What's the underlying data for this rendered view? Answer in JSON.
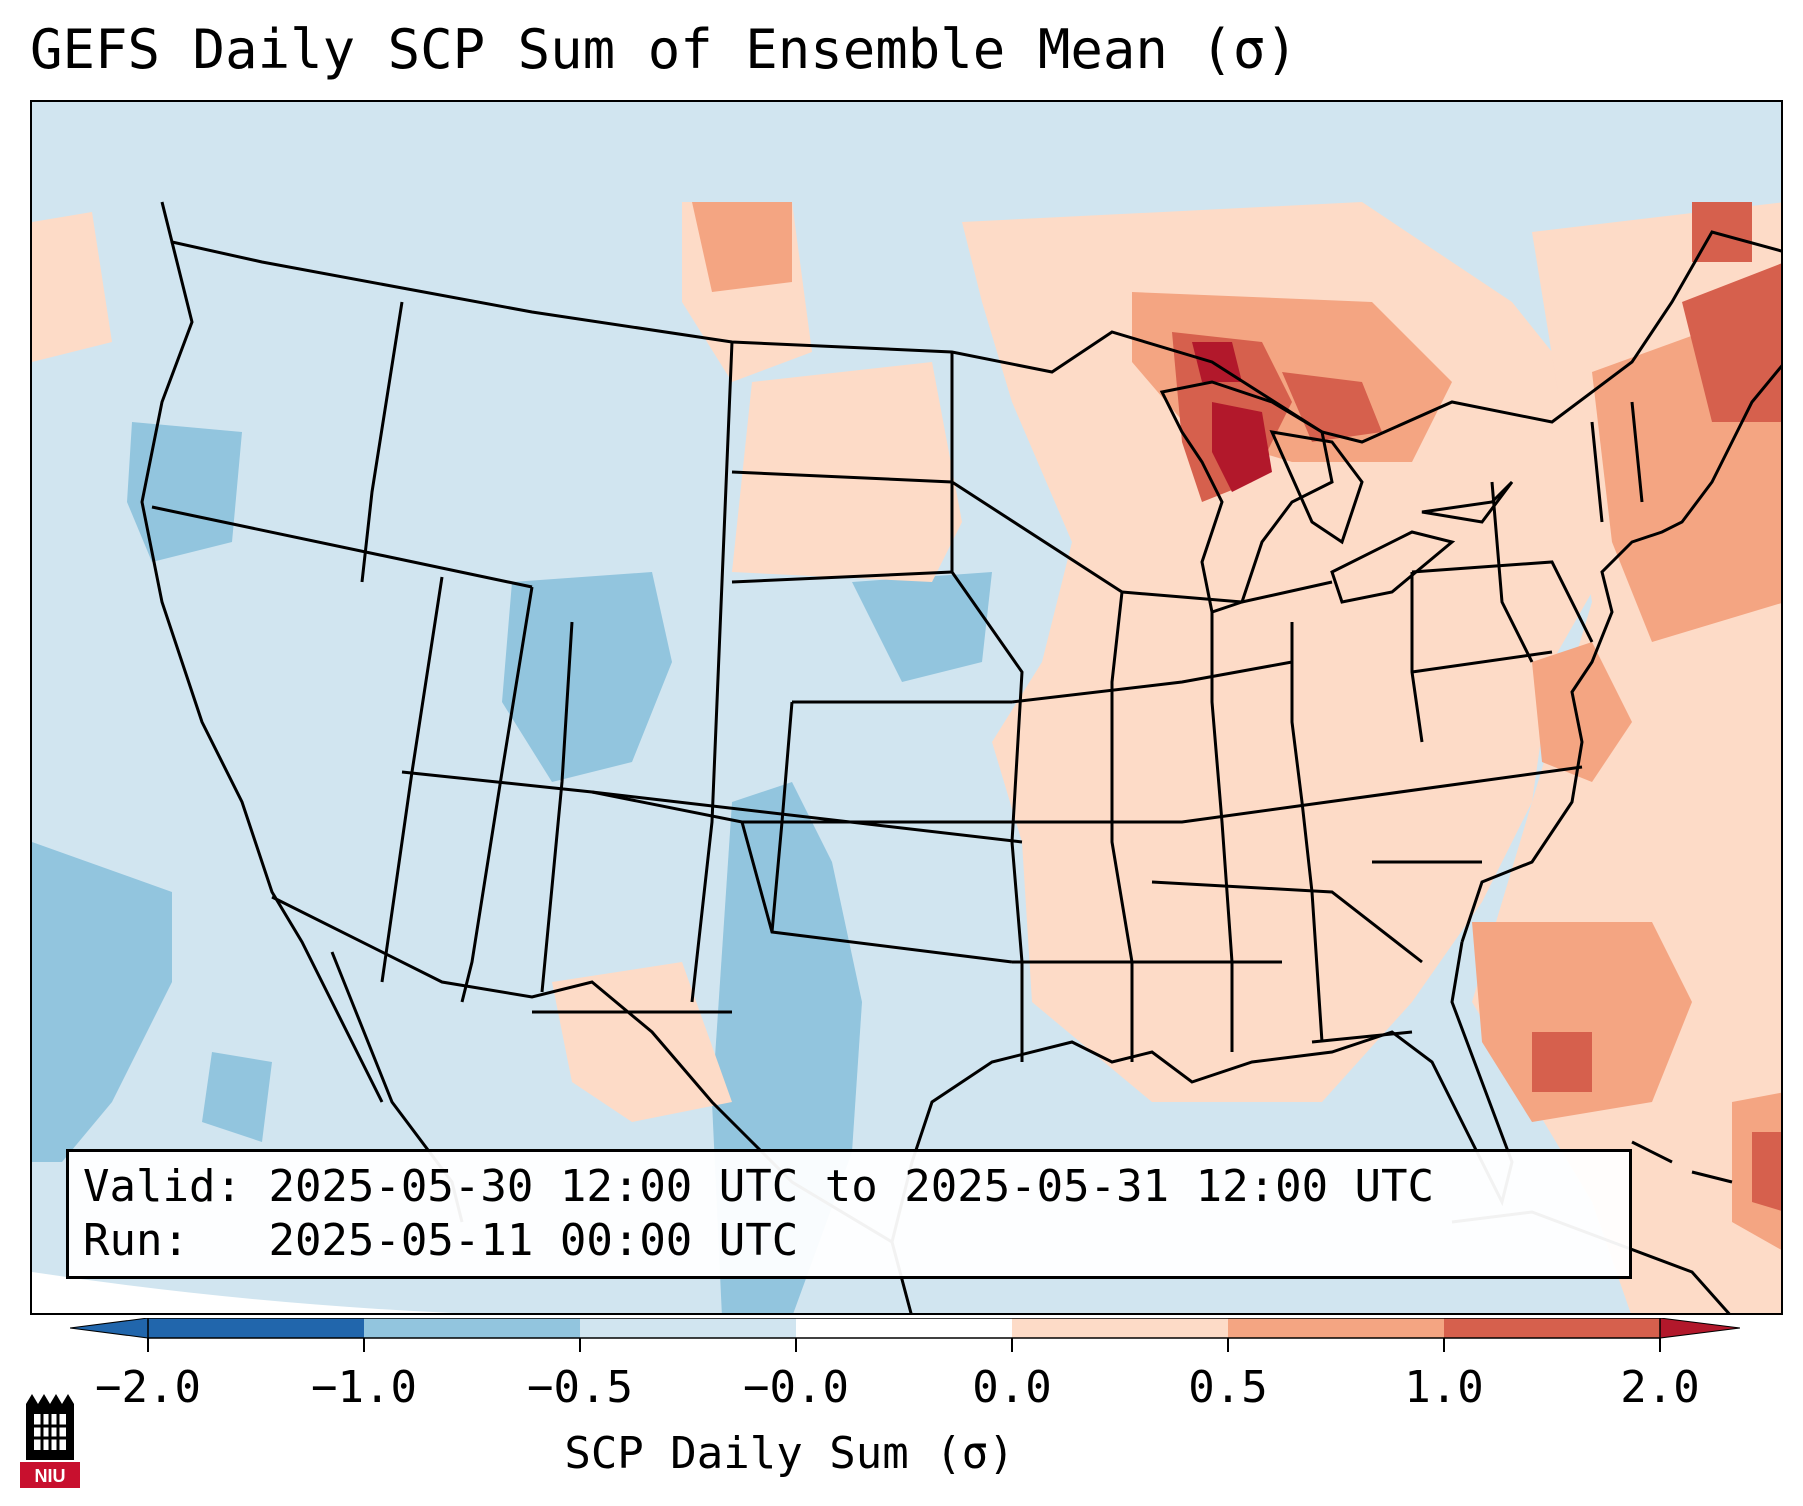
{
  "title": "GEFS Daily SCP Sum of Ensemble Mean (σ)",
  "info": {
    "valid_label": "Valid:",
    "valid_value": "2025-05-30 12:00 UTC to 2025-05-31 12:00 UTC",
    "run_label": "Run:",
    "run_value": "2025-05-11 00:00 UTC"
  },
  "colorbar": {
    "label": "SCP Daily Sum (σ)",
    "ticks": [
      "−2.0",
      "−1.0",
      "−0.5",
      "−0.0",
      "0.0",
      "0.5",
      "1.0",
      "2.0"
    ],
    "colors": [
      "#2166ac",
      "#92c5de",
      "#d1e5f0",
      "#ffffff",
      "#fddbc7",
      "#f4a582",
      "#d6604d",
      "#b2182b"
    ],
    "extend": "both"
  },
  "logo": {
    "text": "NIU",
    "color": "#c8102e"
  },
  "legend_colors": {
    "land_neutral": "#d1e5f0",
    "light_negative": "#92c5de",
    "light_positive": "#fddbc7",
    "medium_positive": "#f4a582",
    "strong_positive": "#d6604d",
    "extreme_positive": "#b2182b"
  }
}
